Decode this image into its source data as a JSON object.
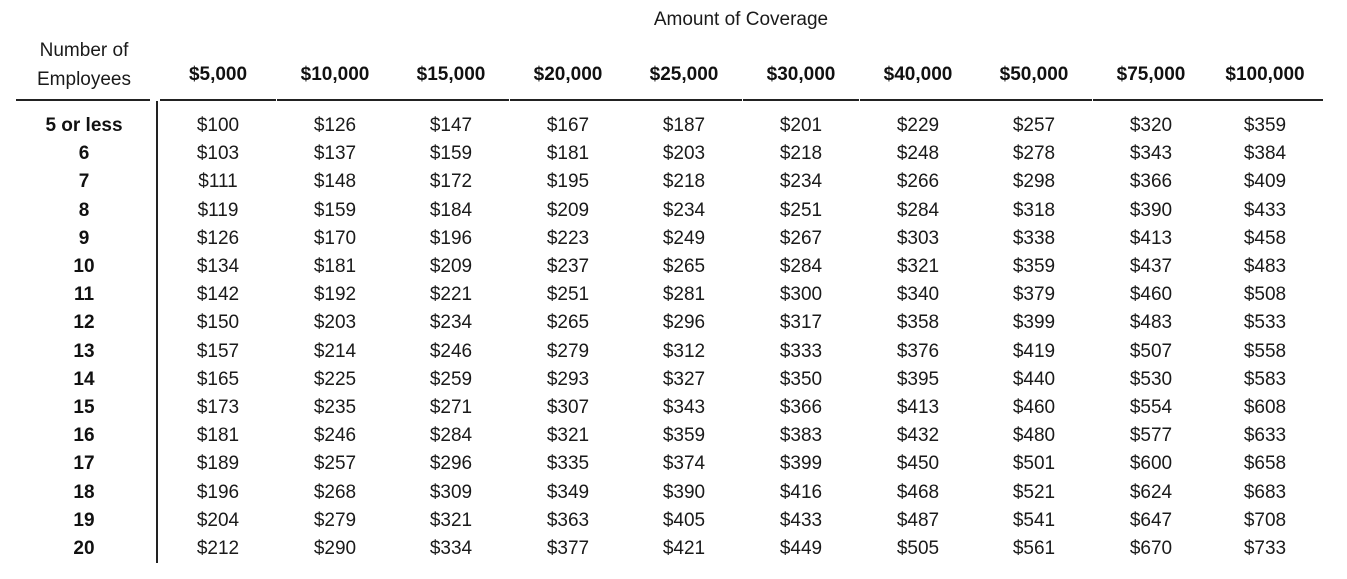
{
  "table": {
    "super_header": "Amount of Coverage",
    "row_header_label": "Number of Employees",
    "row_header_lines": [
      "Number of",
      "Employees"
    ],
    "columns": [
      "$5,000",
      "$10,000",
      "$15,000",
      "$20,000",
      "$25,000",
      "$30,000",
      "$40,000",
      "$50,000",
      "$75,000",
      "$100,000"
    ],
    "rows": [
      {
        "label": "5 or less",
        "values": [
          "$100",
          "$126",
          "$147",
          "$167",
          "$187",
          "$201",
          "$229",
          "$257",
          "$320",
          "$359"
        ]
      },
      {
        "label": "6",
        "values": [
          "$103",
          "$137",
          "$159",
          "$181",
          "$203",
          "$218",
          "$248",
          "$278",
          "$343",
          "$384"
        ]
      },
      {
        "label": "7",
        "values": [
          "$111",
          "$148",
          "$172",
          "$195",
          "$218",
          "$234",
          "$266",
          "$298",
          "$366",
          "$409"
        ]
      },
      {
        "label": "8",
        "values": [
          "$119",
          "$159",
          "$184",
          "$209",
          "$234",
          "$251",
          "$284",
          "$318",
          "$390",
          "$433"
        ]
      },
      {
        "label": "9",
        "values": [
          "$126",
          "$170",
          "$196",
          "$223",
          "$249",
          "$267",
          "$303",
          "$338",
          "$413",
          "$458"
        ]
      },
      {
        "label": "10",
        "values": [
          "$134",
          "$181",
          "$209",
          "$237",
          "$265",
          "$284",
          "$321",
          "$359",
          "$437",
          "$483"
        ]
      },
      {
        "label": "11",
        "values": [
          "$142",
          "$192",
          "$221",
          "$251",
          "$281",
          "$300",
          "$340",
          "$379",
          "$460",
          "$508"
        ]
      },
      {
        "label": "12",
        "values": [
          "$150",
          "$203",
          "$234",
          "$265",
          "$296",
          "$317",
          "$358",
          "$399",
          "$483",
          "$533"
        ]
      },
      {
        "label": "13",
        "values": [
          "$157",
          "$214",
          "$246",
          "$279",
          "$312",
          "$333",
          "$376",
          "$419",
          "$507",
          "$558"
        ]
      },
      {
        "label": "14",
        "values": [
          "$165",
          "$225",
          "$259",
          "$293",
          "$327",
          "$350",
          "$395",
          "$440",
          "$530",
          "$583"
        ]
      },
      {
        "label": "15",
        "values": [
          "$173",
          "$235",
          "$271",
          "$307",
          "$343",
          "$366",
          "$413",
          "$460",
          "$554",
          "$608"
        ]
      },
      {
        "label": "16",
        "values": [
          "$181",
          "$246",
          "$284",
          "$321",
          "$359",
          "$383",
          "$432",
          "$480",
          "$577",
          "$633"
        ]
      },
      {
        "label": "17",
        "values": [
          "$189",
          "$257",
          "$296",
          "$335",
          "$374",
          "$399",
          "$450",
          "$501",
          "$600",
          "$658"
        ]
      },
      {
        "label": "18",
        "values": [
          "$196",
          "$268",
          "$309",
          "$349",
          "$390",
          "$416",
          "$468",
          "$521",
          "$624",
          "$683"
        ]
      },
      {
        "label": "19",
        "values": [
          "$204",
          "$279",
          "$321",
          "$363",
          "$405",
          "$433",
          "$487",
          "$541",
          "$647",
          "$708"
        ]
      },
      {
        "label": "20",
        "values": [
          "$212",
          "$290",
          "$334",
          "$377",
          "$421",
          "$449",
          "$505",
          "$561",
          "$670",
          "$733"
        ]
      }
    ]
  }
}
